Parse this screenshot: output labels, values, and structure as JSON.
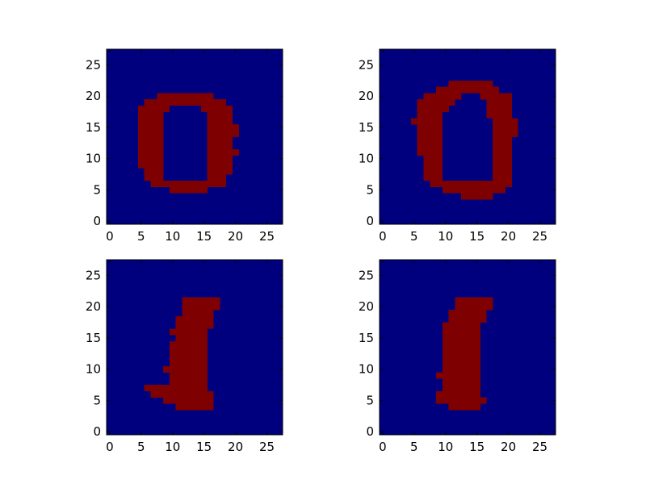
{
  "figure": {
    "background": "#ffffff",
    "colors": {
      "low": "#00007f",
      "high": "#7f0000",
      "spine": "#000000"
    }
  },
  "chart_data": [
    {
      "type": "heatmap",
      "panel": "top-left",
      "grid_size": [
        28,
        28
      ],
      "x_ticks": [
        "0",
        "5",
        "10",
        "15",
        "20",
        "25"
      ],
      "y_ticks": [
        "0",
        "5",
        "10",
        "15",
        "20",
        "25"
      ],
      "xlim": [
        -0.5,
        27.5
      ],
      "ylim": [
        27.5,
        -0.5
      ],
      "value_range": [
        0,
        1
      ],
      "rows_high": [
        {
          "row": 6,
          "cols": [
            [
              10,
              15
            ]
          ]
        },
        {
          "row": 7,
          "cols": [
            [
              7,
              18
            ]
          ]
        },
        {
          "row": 8,
          "cols": [
            [
              6,
              8
            ],
            [
              16,
              18
            ]
          ]
        },
        {
          "row": 9,
          "cols": [
            [
              6,
              8
            ],
            [
              16,
              19
            ]
          ]
        },
        {
          "row": 10,
          "cols": [
            [
              5,
              8
            ],
            [
              16,
              19
            ]
          ]
        },
        {
          "row": 11,
          "cols": [
            [
              5,
              8
            ],
            [
              16,
              19
            ]
          ]
        },
        {
          "row": 12,
          "cols": [
            [
              5,
              8
            ],
            [
              16,
              20
            ]
          ]
        },
        {
          "row": 13,
          "cols": [
            [
              5,
              8
            ],
            [
              16,
              19
            ]
          ]
        },
        {
          "row": 14,
          "cols": [
            [
              5,
              8
            ],
            [
              16,
              19
            ]
          ]
        },
        {
          "row": 15,
          "cols": [
            [
              5,
              8
            ],
            [
              16,
              20
            ]
          ]
        },
        {
          "row": 16,
          "cols": [
            [
              5,
              8
            ],
            [
              16,
              20
            ]
          ]
        },
        {
          "row": 17,
          "cols": [
            [
              5,
              8
            ],
            [
              16,
              19
            ]
          ]
        },
        {
          "row": 18,
          "cols": [
            [
              5,
              8
            ],
            [
              16,
              19
            ]
          ]
        },
        {
          "row": 19,
          "cols": [
            [
              5,
              9
            ],
            [
              15,
              19
            ]
          ]
        },
        {
          "row": 20,
          "cols": [
            [
              6,
              18
            ]
          ]
        },
        {
          "row": 21,
          "cols": [
            [
              8,
              16
            ]
          ]
        }
      ]
    },
    {
      "type": "heatmap",
      "panel": "top-right",
      "grid_size": [
        28,
        28
      ],
      "x_ticks": [
        "0",
        "5",
        "10",
        "15",
        "20",
        "25"
      ],
      "y_ticks": [
        "0",
        "5",
        "10",
        "15",
        "20",
        "25"
      ],
      "xlim": [
        -0.5,
        27.5
      ],
      "ylim": [
        27.5,
        -0.5
      ],
      "value_range": [
        0,
        1
      ],
      "rows_high": [
        {
          "row": 5,
          "cols": [
            [
              13,
              17
            ]
          ]
        },
        {
          "row": 6,
          "cols": [
            [
              10,
              19
            ]
          ]
        },
        {
          "row": 7,
          "cols": [
            [
              8,
              20
            ]
          ]
        },
        {
          "row": 8,
          "cols": [
            [
              7,
              9
            ],
            [
              18,
              20
            ]
          ]
        },
        {
          "row": 9,
          "cols": [
            [
              7,
              9
            ],
            [
              18,
              20
            ]
          ]
        },
        {
          "row": 10,
          "cols": [
            [
              7,
              9
            ],
            [
              18,
              20
            ]
          ]
        },
        {
          "row": 11,
          "cols": [
            [
              7,
              9
            ],
            [
              18,
              20
            ]
          ]
        },
        {
          "row": 12,
          "cols": [
            [
              6,
              9
            ],
            [
              18,
              20
            ]
          ]
        },
        {
          "row": 13,
          "cols": [
            [
              6,
              9
            ],
            [
              18,
              20
            ]
          ]
        },
        {
          "row": 14,
          "cols": [
            [
              6,
              9
            ],
            [
              18,
              20
            ]
          ]
        },
        {
          "row": 15,
          "cols": [
            [
              6,
              9
            ],
            [
              18,
              21
            ]
          ]
        },
        {
          "row": 16,
          "cols": [
            [
              6,
              9
            ],
            [
              18,
              21
            ]
          ]
        },
        {
          "row": 17,
          "cols": [
            [
              5,
              9
            ],
            [
              18,
              21
            ]
          ]
        },
        {
          "row": 18,
          "cols": [
            [
              6,
              9
            ],
            [
              17,
              20
            ]
          ]
        },
        {
          "row": 19,
          "cols": [
            [
              6,
              10
            ],
            [
              17,
              20
            ]
          ]
        },
        {
          "row": 20,
          "cols": [
            [
              6,
              11
            ],
            [
              17,
              20
            ]
          ]
        },
        {
          "row": 21,
          "cols": [
            [
              7,
              12
            ],
            [
              16,
              20
            ]
          ]
        },
        {
          "row": 22,
          "cols": [
            [
              9,
              18
            ]
          ]
        },
        {
          "row": 23,
          "cols": [
            [
              11,
              17
            ]
          ]
        }
      ]
    },
    {
      "type": "heatmap",
      "panel": "bottom-left",
      "grid_size": [
        28,
        28
      ],
      "x_ticks": [
        "0",
        "5",
        "10",
        "15",
        "20",
        "25"
      ],
      "y_ticks": [
        "0",
        "5",
        "10",
        "15",
        "20",
        "25"
      ],
      "xlim": [
        -0.5,
        27.5
      ],
      "ylim": [
        27.5,
        -0.5
      ],
      "value_range": [
        0,
        1
      ],
      "rows_high": [
        {
          "row": 5,
          "cols": [
            [
              11,
              16
            ]
          ]
        },
        {
          "row": 6,
          "cols": [
            [
              9,
              16
            ]
          ]
        },
        {
          "row": 7,
          "cols": [
            [
              7,
              16
            ]
          ]
        },
        {
          "row": 8,
          "cols": [
            [
              6,
              15
            ]
          ]
        },
        {
          "row": 9,
          "cols": [
            [
              10,
              15
            ]
          ]
        },
        {
          "row": 10,
          "cols": [
            [
              10,
              15
            ]
          ]
        },
        {
          "row": 11,
          "cols": [
            [
              9,
              15
            ]
          ]
        },
        {
          "row": 12,
          "cols": [
            [
              10,
              15
            ]
          ]
        },
        {
          "row": 13,
          "cols": [
            [
              10,
              15
            ]
          ]
        },
        {
          "row": 14,
          "cols": [
            [
              10,
              15
            ]
          ]
        },
        {
          "row": 15,
          "cols": [
            [
              10,
              15
            ]
          ]
        },
        {
          "row": 16,
          "cols": [
            [
              11,
              15
            ]
          ]
        },
        {
          "row": 17,
          "cols": [
            [
              10,
              15
            ]
          ]
        },
        {
          "row": 18,
          "cols": [
            [
              11,
              16
            ]
          ]
        },
        {
          "row": 19,
          "cols": [
            [
              11,
              16
            ]
          ]
        },
        {
          "row": 20,
          "cols": [
            [
              12,
              16
            ]
          ]
        },
        {
          "row": 21,
          "cols": [
            [
              12,
              17
            ]
          ]
        },
        {
          "row": 22,
          "cols": [
            [
              12,
              17
            ]
          ]
        }
      ]
    },
    {
      "type": "heatmap",
      "panel": "bottom-right",
      "grid_size": [
        28,
        28
      ],
      "x_ticks": [
        "0",
        "5",
        "10",
        "15",
        "20",
        "25"
      ],
      "y_ticks": [
        "0",
        "5",
        "10",
        "15",
        "20",
        "25"
      ],
      "xlim": [
        -0.5,
        27.5
      ],
      "ylim": [
        27.5,
        -0.5
      ],
      "value_range": [
        0,
        1
      ],
      "rows_high": [
        {
          "row": 5,
          "cols": [
            [
              11,
              15
            ]
          ]
        },
        {
          "row": 6,
          "cols": [
            [
              9,
              16
            ]
          ]
        },
        {
          "row": 7,
          "cols": [
            [
              9,
              15
            ]
          ]
        },
        {
          "row": 8,
          "cols": [
            [
              10,
              15
            ]
          ]
        },
        {
          "row": 9,
          "cols": [
            [
              10,
              15
            ]
          ]
        },
        {
          "row": 10,
          "cols": [
            [
              9,
              15
            ]
          ]
        },
        {
          "row": 11,
          "cols": [
            [
              10,
              15
            ]
          ]
        },
        {
          "row": 12,
          "cols": [
            [
              10,
              15
            ]
          ]
        },
        {
          "row": 13,
          "cols": [
            [
              10,
              15
            ]
          ]
        },
        {
          "row": 14,
          "cols": [
            [
              10,
              15
            ]
          ]
        },
        {
          "row": 15,
          "cols": [
            [
              10,
              15
            ]
          ]
        },
        {
          "row": 16,
          "cols": [
            [
              10,
              15
            ]
          ]
        },
        {
          "row": 17,
          "cols": [
            [
              10,
              15
            ]
          ]
        },
        {
          "row": 18,
          "cols": [
            [
              10,
              15
            ]
          ]
        },
        {
          "row": 19,
          "cols": [
            [
              11,
              16
            ]
          ]
        },
        {
          "row": 20,
          "cols": [
            [
              11,
              16
            ]
          ]
        },
        {
          "row": 21,
          "cols": [
            [
              12,
              17
            ]
          ]
        },
        {
          "row": 22,
          "cols": [
            [
              12,
              17
            ]
          ]
        }
      ]
    }
  ]
}
